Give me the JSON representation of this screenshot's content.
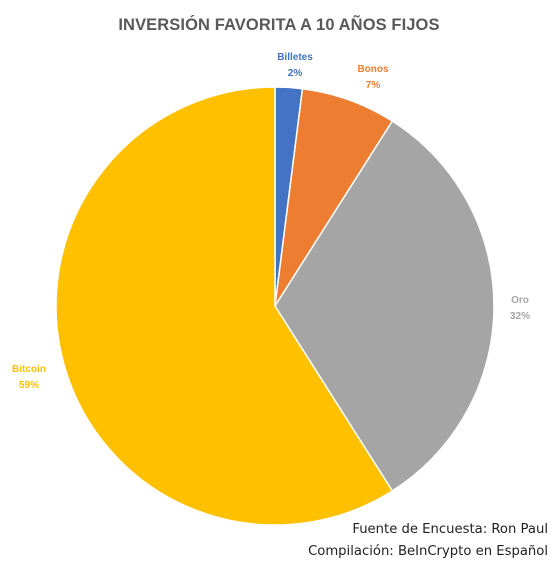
{
  "chart_data": {
    "type": "pie",
    "title": "INVERSIÓN FAVORITA A 10 AÑOS FIJOS",
    "start_angle_deg": 0,
    "direction": "clockwise",
    "slices": [
      {
        "label": "Billetes",
        "value": 2,
        "value_label": "2%",
        "color": "#4472C4"
      },
      {
        "label": "Bonos",
        "value": 7,
        "value_label": "7%",
        "color": "#ED7D31"
      },
      {
        "label": "Oro",
        "value": 32,
        "value_label": "32%",
        "color": "#A5A5A5"
      },
      {
        "label": "Bitcoin",
        "value": 59,
        "value_label": "59%",
        "color": "#FFC000"
      }
    ],
    "legend": "none"
  },
  "source": {
    "line1": "Fuente de Encuesta: Ron Paul",
    "line2": "Compilación: BeInCrypto en Español"
  }
}
